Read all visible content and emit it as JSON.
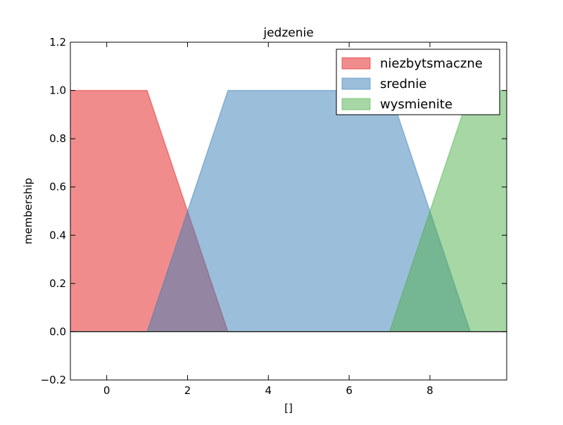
{
  "chart_data": {
    "type": "area",
    "title": "jedzenie",
    "xlabel": "[]",
    "ylabel": "membership",
    "xlim": [
      -0.9,
      9.9
    ],
    "ylim": [
      -0.2,
      1.2
    ],
    "xticks": [
      "0",
      "2",
      "4",
      "6",
      "8"
    ],
    "yticks": [
      "−0.2",
      "0.0",
      "0.2",
      "0.4",
      "0.6",
      "0.8",
      "1.0",
      "1.2"
    ],
    "legend_position": "top-right",
    "grid": false,
    "series": [
      {
        "name": "niezbytsmaczne",
        "color": "#e41a1c",
        "x": [
          -0.9,
          1,
          3,
          9.9
        ],
        "y": [
          1,
          1,
          0,
          0
        ]
      },
      {
        "name": "srednie",
        "color": "#377eb8",
        "x": [
          -0.9,
          1,
          3,
          7,
          9,
          9.9
        ],
        "y": [
          0,
          0,
          1,
          1,
          0,
          0
        ]
      },
      {
        "name": "wysmienite",
        "color": "#4daf4a",
        "x": [
          -0.9,
          7,
          9,
          9.9
        ],
        "y": [
          0,
          0,
          1,
          1
        ]
      }
    ]
  }
}
